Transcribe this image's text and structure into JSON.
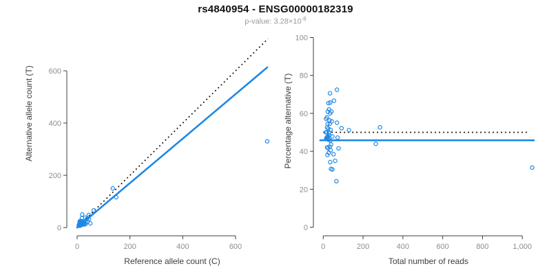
{
  "title": "rs4840954 - ENSG00000182319",
  "subtitle": {
    "text": "p-value: 3.28×10",
    "exponent": "-8"
  },
  "colors": {
    "accent_blue": "#1e87e5",
    "dotted_line": "#000000",
    "axis_line": "#3c3c3c",
    "tick_label": "#8c8c8c",
    "axis_title": "#3c3c3c",
    "title_color": "#111111",
    "subtitle_color": "#999999"
  },
  "samples_ref_alt_counts": [
    [
      19,
      50
    ],
    [
      10,
      24
    ],
    [
      18,
      36
    ],
    [
      9,
      17
    ],
    [
      12,
      23
    ],
    [
      11,
      18
    ],
    [
      16,
      25
    ],
    [
      9,
      14
    ],
    [
      14,
      21
    ],
    [
      8,
      11
    ],
    [
      14,
      18
    ],
    [
      19,
      24
    ],
    [
      10,
      12
    ],
    [
      15,
      18
    ],
    [
      31,
      38
    ],
    [
      44,
      48
    ],
    [
      63,
      66
    ],
    [
      135,
      150
    ],
    [
      9,
      10
    ],
    [
      7,
      7
    ],
    [
      14,
      14
    ],
    [
      18,
      19
    ],
    [
      12,
      11
    ],
    [
      9,
      8
    ],
    [
      16,
      15
    ],
    [
      24,
      22
    ],
    [
      11,
      10
    ],
    [
      19,
      16
    ],
    [
      38,
      34
    ],
    [
      14,
      12
    ],
    [
      22,
      17
    ],
    [
      148,
      116
    ],
    [
      11,
      8
    ],
    [
      19,
      14
    ],
    [
      14,
      10
    ],
    [
      22,
      15
    ],
    [
      17,
      11
    ],
    [
      13,
      8
    ],
    [
      23,
      12
    ],
    [
      39,
      21
    ],
    [
      27,
      12
    ],
    [
      32,
      14
    ],
    [
      50,
      16
    ],
    [
      720,
      330
    ],
    [
      45,
      32
    ],
    [
      32,
      20
    ],
    [
      8,
      7
    ],
    [
      9,
      9
    ],
    [
      12,
      13
    ],
    [
      15,
      14
    ],
    [
      6,
      8
    ],
    [
      10,
      9
    ]
  ],
  "chart_data": [
    {
      "type": "scatter",
      "panel": "left",
      "xlabel": "Reference allele count (C)",
      "ylabel": "Alternative allele count (T)",
      "xlim": [
        0,
        750
      ],
      "ylim": [
        0,
        723
      ],
      "grid": false,
      "xticks": {
        "values": [
          0,
          200,
          400,
          600
        ],
        "labels": [
          "0",
          "200",
          "400",
          "600"
        ]
      },
      "yticks": {
        "values": [
          0,
          200,
          400,
          600
        ],
        "labels": [
          "0",
          "200",
          "400",
          "600"
        ]
      },
      "points_note": "points are [ref, alt] pairs from samples_ref_alt_counts",
      "lines": [
        {
          "name": "identity-line",
          "style": "dotted",
          "color": "#000000",
          "from": [
            0,
            0
          ],
          "to": [
            723,
            723
          ]
        },
        {
          "name": "fit-line",
          "style": "solid",
          "color": "#1e87e5",
          "from": [
            0,
            0
          ],
          "to": [
            720,
            613
          ]
        }
      ]
    },
    {
      "type": "scatter",
      "panel": "right",
      "xlabel": "Total number of reads",
      "ylabel": "Percentage alternative (T)",
      "xlim": [
        0,
        1060
      ],
      "ylim": [
        0,
        100
      ],
      "grid": false,
      "xticks": {
        "values": [
          0,
          200,
          400,
          600,
          800,
          1000
        ],
        "labels": [
          "0",
          "200",
          "400",
          "600",
          "800",
          "1,000"
        ]
      },
      "yticks": {
        "values": [
          0,
          20,
          40,
          60,
          80,
          100
        ],
        "labels": [
          "0",
          "20",
          "40",
          "60",
          "80",
          "100"
        ]
      },
      "points_note": "points are [ref+alt, 100*alt/(ref+alt)] from samples_ref_alt_counts",
      "lines": [
        {
          "name": "expected-50pct-line",
          "style": "dotted",
          "color": "#000000",
          "from": [
            0,
            50
          ],
          "to": [
            1035,
            50
          ]
        },
        {
          "name": "observed-fraction-line",
          "style": "solid",
          "color": "#1e87e5",
          "from": [
            -15,
            45.8
          ],
          "to": [
            1058,
            45.8
          ]
        }
      ]
    }
  ]
}
